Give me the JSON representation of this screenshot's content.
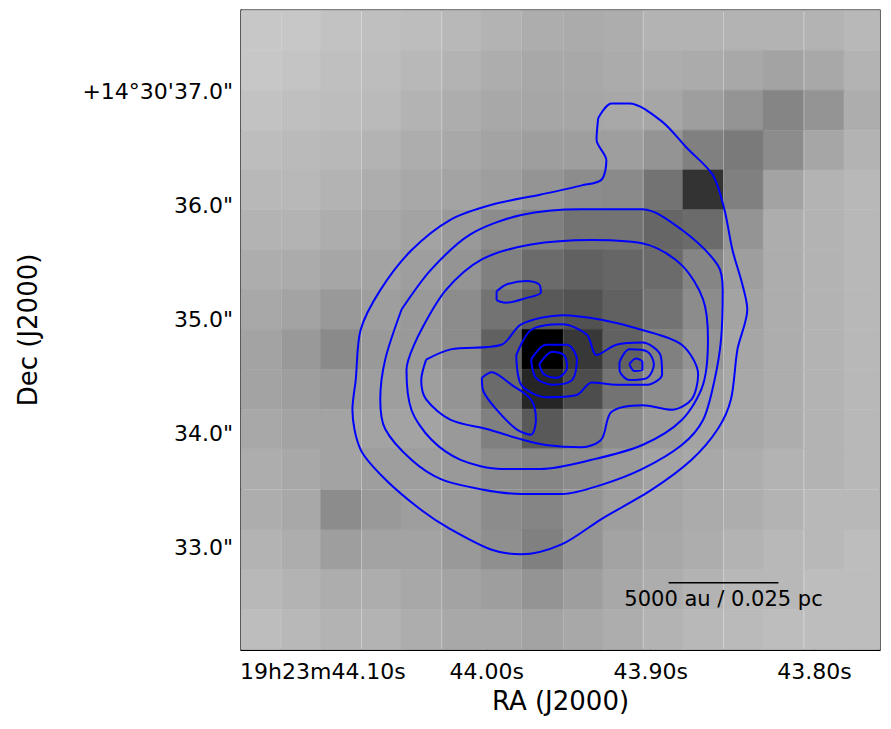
{
  "chart_data": {
    "type": "contour",
    "x_label": "RA (J2000)",
    "y_label": "Dec (J2000)",
    "xlim": [
      44.15,
      43.76
    ],
    "ylim": [
      32.1,
      37.72
    ],
    "xticks": [
      {
        "value": 44.1,
        "label": "19h23m44.10s"
      },
      {
        "value": 44.0,
        "label": "44.00s"
      },
      {
        "value": 43.9,
        "label": "43.90s"
      },
      {
        "value": 43.8,
        "label": "43.80s"
      }
    ],
    "yticks": [
      {
        "value": 33,
        "label": "33.0\""
      },
      {
        "value": 34,
        "label": "34.0\""
      },
      {
        "value": 35,
        "label": "35.0\""
      },
      {
        "value": 36,
        "label": "36.0\""
      },
      {
        "value": 37,
        "label": "+14°30'37.0\""
      }
    ],
    "grid": false,
    "color": "#0000ff",
    "image": {
      "ra": [
        44.138,
        44.113,
        44.089,
        44.064,
        44.04,
        44.015,
        43.991,
        43.966,
        43.941,
        43.917,
        43.892,
        43.868,
        43.843,
        43.819,
        43.794,
        43.77
      ],
      "dec": [
        37.54,
        37.19,
        36.84,
        36.49,
        36.14,
        35.79,
        35.44,
        35.09,
        34.74,
        34.39,
        34.04,
        33.69,
        33.33,
        32.98,
        32.63,
        32.28
      ],
      "range": [
        0,
        1
      ],
      "values": [
        [
          0.22,
          0.22,
          0.24,
          0.25,
          0.26,
          0.28,
          0.3,
          0.32,
          0.33,
          0.32,
          0.3,
          0.3,
          0.3,
          0.3,
          0.3,
          0.28
        ],
        [
          0.22,
          0.23,
          0.25,
          0.26,
          0.28,
          0.3,
          0.32,
          0.34,
          0.34,
          0.33,
          0.32,
          0.33,
          0.34,
          0.36,
          0.34,
          0.3
        ],
        [
          0.24,
          0.25,
          0.26,
          0.27,
          0.3,
          0.32,
          0.34,
          0.35,
          0.35,
          0.34,
          0.35,
          0.38,
          0.42,
          0.48,
          0.42,
          0.32
        ],
        [
          0.26,
          0.27,
          0.28,
          0.3,
          0.32,
          0.34,
          0.36,
          0.38,
          0.38,
          0.38,
          0.42,
          0.5,
          0.52,
          0.45,
          0.35,
          0.3
        ],
        [
          0.28,
          0.28,
          0.3,
          0.32,
          0.34,
          0.36,
          0.38,
          0.42,
          0.45,
          0.46,
          0.55,
          0.8,
          0.5,
          0.36,
          0.3,
          0.28
        ],
        [
          0.3,
          0.3,
          0.32,
          0.34,
          0.36,
          0.4,
          0.45,
          0.5,
          0.55,
          0.55,
          0.6,
          0.58,
          0.42,
          0.32,
          0.3,
          0.28
        ],
        [
          0.32,
          0.33,
          0.35,
          0.36,
          0.38,
          0.42,
          0.5,
          0.58,
          0.62,
          0.6,
          0.58,
          0.48,
          0.38,
          0.32,
          0.3,
          0.28
        ],
        [
          0.34,
          0.36,
          0.4,
          0.38,
          0.4,
          0.45,
          0.55,
          0.65,
          0.68,
          0.62,
          0.55,
          0.45,
          0.36,
          0.32,
          0.3,
          0.28
        ],
        [
          0.36,
          0.4,
          0.46,
          0.4,
          0.4,
          0.45,
          0.62,
          1.0,
          0.78,
          0.62,
          0.5,
          0.42,
          0.35,
          0.32,
          0.3,
          0.28
        ],
        [
          0.36,
          0.38,
          0.4,
          0.38,
          0.38,
          0.42,
          0.58,
          0.85,
          0.7,
          0.55,
          0.45,
          0.38,
          0.34,
          0.32,
          0.3,
          0.28
        ],
        [
          0.34,
          0.36,
          0.36,
          0.36,
          0.36,
          0.4,
          0.5,
          0.65,
          0.52,
          0.45,
          0.4,
          0.36,
          0.34,
          0.32,
          0.3,
          0.28
        ],
        [
          0.32,
          0.34,
          0.36,
          0.38,
          0.38,
          0.4,
          0.45,
          0.48,
          0.45,
          0.4,
          0.36,
          0.34,
          0.32,
          0.3,
          0.3,
          0.28
        ],
        [
          0.32,
          0.34,
          0.45,
          0.4,
          0.38,
          0.4,
          0.45,
          0.48,
          0.42,
          0.38,
          0.35,
          0.33,
          0.32,
          0.3,
          0.28,
          0.28
        ],
        [
          0.3,
          0.32,
          0.38,
          0.36,
          0.36,
          0.4,
          0.44,
          0.5,
          0.42,
          0.36,
          0.34,
          0.32,
          0.3,
          0.28,
          0.28,
          0.26
        ],
        [
          0.28,
          0.3,
          0.32,
          0.32,
          0.34,
          0.36,
          0.38,
          0.42,
          0.38,
          0.34,
          0.32,
          0.3,
          0.28,
          0.28,
          0.26,
          0.26
        ],
        [
          0.26,
          0.28,
          0.3,
          0.3,
          0.32,
          0.34,
          0.34,
          0.36,
          0.34,
          0.32,
          0.3,
          0.28,
          0.27,
          0.26,
          0.26,
          0.26
        ]
      ]
    },
    "contours": [
      [
        [
          43.932,
          36.77
        ],
        [
          43.924,
          36.9
        ],
        [
          43.913,
          36.9
        ],
        [
          43.893,
          36.74
        ],
        [
          43.878,
          36.51
        ],
        [
          43.862,
          36.27
        ],
        [
          43.855,
          35.97
        ],
        [
          43.85,
          35.61
        ],
        [
          43.844,
          35.31
        ],
        [
          43.841,
          35.09
        ],
        [
          43.847,
          34.74
        ],
        [
          43.851,
          34.3
        ],
        [
          43.859,
          34.04
        ],
        [
          43.875,
          33.77
        ],
        [
          43.899,
          33.51
        ],
        [
          43.93,
          33.25
        ],
        [
          43.954,
          33.03
        ],
        [
          43.979,
          32.94
        ],
        [
          43.997,
          32.98
        ],
        [
          44.022,
          33.16
        ],
        [
          44.04,
          33.33
        ],
        [
          44.062,
          33.6
        ],
        [
          44.077,
          33.86
        ],
        [
          44.082,
          34.21
        ],
        [
          44.08,
          34.47
        ],
        [
          44.077,
          34.91
        ],
        [
          44.065,
          35.26
        ],
        [
          44.046,
          35.61
        ],
        [
          44.022,
          35.88
        ],
        [
          43.997,
          36.01
        ],
        [
          43.967,
          36.1
        ],
        [
          43.942,
          36.18
        ],
        [
          43.93,
          36.23
        ],
        [
          43.927,
          36.4
        ],
        [
          43.933,
          36.58
        ]
      ],
      [
        [
          44.052,
          35.09
        ],
        [
          44.034,
          35.44
        ],
        [
          44.01,
          35.75
        ],
        [
          43.979,
          35.92
        ],
        [
          43.942,
          35.97
        ],
        [
          43.905,
          35.97
        ],
        [
          43.881,
          35.79
        ],
        [
          43.859,
          35.48
        ],
        [
          43.856,
          35.26
        ],
        [
          43.857,
          34.83
        ],
        [
          43.861,
          34.47
        ],
        [
          43.868,
          34.12
        ],
        [
          43.881,
          33.9
        ],
        [
          43.905,
          33.69
        ],
        [
          43.93,
          33.55
        ],
        [
          43.954,
          33.47
        ],
        [
          43.979,
          33.47
        ],
        [
          44.003,
          33.51
        ],
        [
          44.028,
          33.6
        ],
        [
          44.046,
          33.77
        ],
        [
          44.062,
          34.04
        ],
        [
          44.065,
          34.3
        ],
        [
          44.062,
          34.65
        ]
      ],
      [
        [
          44.04,
          34.91
        ],
        [
          44.025,
          35.26
        ],
        [
          44.003,
          35.53
        ],
        [
          43.973,
          35.66
        ],
        [
          43.936,
          35.7
        ],
        [
          43.902,
          35.66
        ],
        [
          43.881,
          35.48
        ],
        [
          43.868,
          35.18
        ],
        [
          43.865,
          34.83
        ],
        [
          43.868,
          34.43
        ],
        [
          43.881,
          34.12
        ],
        [
          43.905,
          33.9
        ],
        [
          43.936,
          33.77
        ],
        [
          43.967,
          33.69
        ],
        [
          43.991,
          33.69
        ],
        [
          44.016,
          33.77
        ],
        [
          44.034,
          33.95
        ],
        [
          44.046,
          34.21
        ],
        [
          44.049,
          34.56
        ]
      ],
      [
        [
          44.037,
          34.65
        ],
        [
          44.022,
          34.74
        ],
        [
          43.991,
          34.78
        ],
        [
          43.979,
          34.96
        ],
        [
          43.954,
          35.04
        ],
        [
          43.93,
          35.0
        ],
        [
          43.905,
          34.91
        ],
        [
          43.881,
          34.78
        ],
        [
          43.871,
          34.52
        ],
        [
          43.875,
          34.3
        ],
        [
          43.887,
          34.21
        ],
        [
          43.905,
          34.25
        ],
        [
          43.924,
          34.19
        ],
        [
          43.93,
          33.95
        ],
        [
          43.942,
          33.88
        ],
        [
          43.964,
          33.9
        ],
        [
          43.979,
          33.95
        ],
        [
          44.0,
          34.04
        ],
        [
          44.022,
          34.12
        ],
        [
          44.037,
          34.3
        ],
        [
          44.04,
          34.47
        ]
      ],
      [
        [
          43.994,
          35.25
        ],
        [
          43.988,
          35.31
        ],
        [
          43.976,
          35.34
        ],
        [
          43.968,
          35.31
        ],
        [
          43.967,
          35.24
        ],
        [
          43.976,
          35.19
        ],
        [
          43.988,
          35.15
        ],
        [
          43.994,
          35.18
        ]
      ],
      [
        [
          44.003,
          34.49
        ],
        [
          43.997,
          34.54
        ],
        [
          43.985,
          34.43
        ],
        [
          43.973,
          34.3
        ],
        [
          43.97,
          34.12
        ],
        [
          43.973,
          33.99
        ],
        [
          43.982,
          34.04
        ],
        [
          43.994,
          34.21
        ],
        [
          44.002,
          34.37
        ]
      ],
      [
        [
          43.982,
          34.69
        ],
        [
          43.973,
          34.91
        ],
        [
          43.954,
          34.96
        ],
        [
          43.939,
          34.87
        ],
        [
          43.933,
          34.69
        ],
        [
          43.921,
          34.78
        ],
        [
          43.905,
          34.8
        ],
        [
          43.894,
          34.69
        ],
        [
          43.893,
          34.52
        ],
        [
          43.902,
          34.43
        ],
        [
          43.921,
          34.43
        ],
        [
          43.936,
          34.45
        ],
        [
          43.945,
          34.34
        ],
        [
          43.964,
          34.32
        ],
        [
          43.979,
          34.43
        ]
      ],
      [
        [
          43.973,
          34.65
        ],
        [
          43.964,
          34.78
        ],
        [
          43.951,
          34.78
        ],
        [
          43.945,
          34.65
        ],
        [
          43.948,
          34.47
        ],
        [
          43.96,
          34.43
        ],
        [
          43.97,
          34.49
        ]
      ],
      [
        [
          43.968,
          34.61
        ],
        [
          43.96,
          34.72
        ],
        [
          43.953,
          34.69
        ],
        [
          43.951,
          34.58
        ],
        [
          43.957,
          34.49
        ],
        [
          43.965,
          34.52
        ]
      ],
      [
        [
          43.919,
          34.63
        ],
        [
          43.913,
          34.74
        ],
        [
          43.902,
          34.72
        ],
        [
          43.898,
          34.61
        ],
        [
          43.902,
          34.49
        ],
        [
          43.913,
          34.47
        ],
        [
          43.919,
          34.56
        ]
      ],
      [
        [
          43.913,
          34.61
        ],
        [
          43.909,
          34.66
        ],
        [
          43.905,
          34.63
        ],
        [
          43.905,
          34.56
        ],
        [
          43.91,
          34.55
        ]
      ]
    ],
    "scale_bar": {
      "label": "5000 au / 0.025 pc",
      "x": [
        43.889,
        43.822
      ],
      "y": 32.69
    }
  }
}
